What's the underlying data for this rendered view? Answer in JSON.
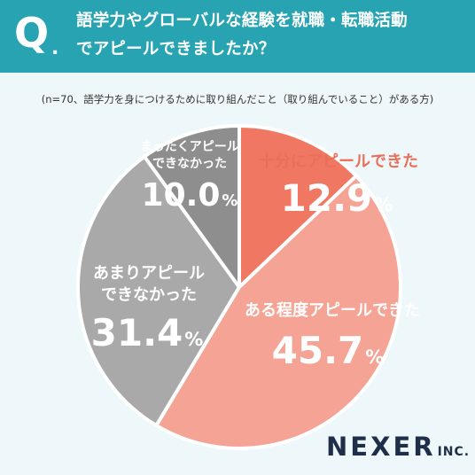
{
  "header": {
    "q_mark": "Q",
    "q_dot": ".",
    "question_line1": "語学力やグローバルな経験を就職・転職活動",
    "question_line2": "でアピールできましたか？"
  },
  "subtitle": "(n=70、語学力を身につけるために取り組んだこと（取り組んでいること）がある方)",
  "logo": {
    "main": "NEXER",
    "sub": "INC."
  },
  "colors": {
    "header_bg": "#27a3b2",
    "slice_1": "#f07862",
    "slice_2": "#f5a394",
    "slice_3": "#a9a9a9",
    "slice_4": "#8e8e8e"
  },
  "chart_data": {
    "type": "pie",
    "slices": [
      {
        "label": "十分にアピールできた",
        "label_lines": [
          "十分にアピールできた"
        ],
        "value": 12.9,
        "value_text": "12.9",
        "unit": "%"
      },
      {
        "label": "ある程度アピールできた",
        "label_lines": [
          "ある程度アピールできた"
        ],
        "value": 45.7,
        "value_text": "45.7",
        "unit": "%"
      },
      {
        "label": "あまりアピールできなかった",
        "label_lines": [
          "あまりアピール",
          "できなかった"
        ],
        "value": 31.4,
        "value_text": "31.4",
        "unit": "%"
      },
      {
        "label": "まったくアピールできなかった",
        "label_lines": [
          "まったくアピール",
          "できなかった"
        ],
        "value": 10.0,
        "value_text": "10.0",
        "unit": "%"
      }
    ]
  }
}
